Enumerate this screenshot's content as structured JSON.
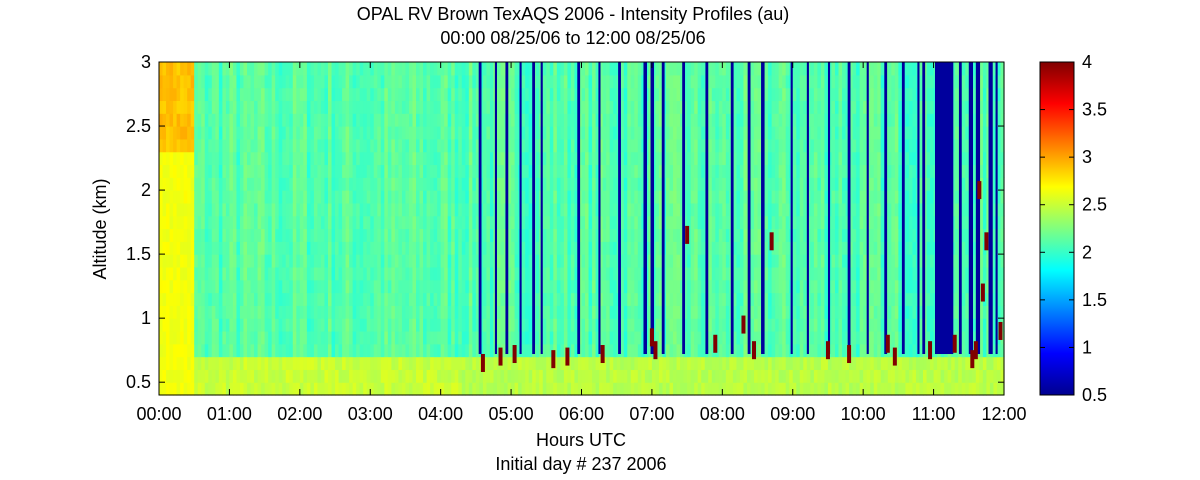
{
  "chart_data": {
    "type": "heatmap",
    "title": "OPAL RV Brown TexAQS 2006 - Intensity Profiles (au)",
    "subtitle": "00:00 08/25/06 to 12:00 08/25/06",
    "xlabel": "Hours UTC",
    "xlabel2": "Initial day # 237  2006",
    "ylabel": "Altitude (km)",
    "xlim": [
      0,
      12
    ],
    "ylim": [
      0.4,
      3
    ],
    "x_ticks": [
      0,
      1,
      2,
      3,
      4,
      5,
      6,
      7,
      8,
      9,
      10,
      11,
      12
    ],
    "x_tick_labels": [
      "00:00",
      "01:00",
      "02:00",
      "03:00",
      "04:00",
      "05:00",
      "06:00",
      "07:00",
      "08:00",
      "09:00",
      "10:00",
      "11:00",
      "12:00"
    ],
    "y_ticks": [
      0.5,
      1,
      1.5,
      2,
      2.5,
      3
    ],
    "y_tick_labels": [
      "0.5",
      "1",
      "1.5",
      "2",
      "2.5",
      "3"
    ],
    "colorbar": {
      "colormap": "jet",
      "clim": [
        0.5,
        4
      ],
      "ticks": [
        0.5,
        1,
        1.5,
        2,
        2.5,
        3,
        3.5,
        4
      ],
      "tick_labels": [
        "0.5",
        "1",
        "1.5",
        "2",
        "2.5",
        "3",
        "3.5",
        "4"
      ]
    },
    "grid": false,
    "description_fields": {
      "background_level": 2.1,
      "near_surface_level": 2.5,
      "early_high_level_window": [
        0.0,
        0.5
      ],
      "early_high_level_value": 2.9,
      "boundary_layer_top_km": 0.72,
      "boundary_layer_peak_value": 4.0
    },
    "low_signal_bands": [
      [
        4.54,
        4.58
      ],
      [
        4.77,
        4.8
      ],
      [
        4.92,
        4.96
      ],
      [
        5.12,
        5.15
      ],
      [
        5.3,
        5.34
      ],
      [
        5.42,
        5.45
      ],
      [
        5.94,
        5.98
      ],
      [
        6.24,
        6.27
      ],
      [
        6.52,
        6.56
      ],
      [
        6.88,
        6.93
      ],
      [
        6.98,
        7.03
      ],
      [
        7.14,
        7.18
      ],
      [
        7.43,
        7.47
      ],
      [
        7.76,
        7.8
      ],
      [
        8.12,
        8.16
      ],
      [
        8.36,
        8.4
      ],
      [
        8.55,
        8.6
      ],
      [
        8.97,
        9.0
      ],
      [
        9.2,
        9.23
      ],
      [
        9.5,
        9.53
      ],
      [
        9.78,
        9.82
      ],
      [
        10.05,
        10.08
      ],
      [
        10.3,
        10.34
      ],
      [
        10.55,
        10.59
      ],
      [
        10.77,
        10.8
      ],
      [
        10.84,
        10.88
      ],
      [
        11.02,
        11.28
      ],
      [
        11.36,
        11.4
      ],
      [
        11.5,
        11.56
      ],
      [
        11.6,
        11.66
      ],
      [
        11.78,
        11.84
      ],
      [
        11.88,
        11.91
      ]
    ],
    "high_signal_spots": [
      [
        4.6,
        0.65
      ],
      [
        4.85,
        0.7
      ],
      [
        5.05,
        0.72
      ],
      [
        5.6,
        0.68
      ],
      [
        5.8,
        0.7
      ],
      [
        6.3,
        0.72
      ],
      [
        7.0,
        0.85
      ],
      [
        7.05,
        0.75
      ],
      [
        7.5,
        1.65
      ],
      [
        7.9,
        0.8
      ],
      [
        8.3,
        0.95
      ],
      [
        8.45,
        0.75
      ],
      [
        8.7,
        1.6
      ],
      [
        9.5,
        0.75
      ],
      [
        9.8,
        0.72
      ],
      [
        10.35,
        0.8
      ],
      [
        10.45,
        0.7
      ],
      [
        10.95,
        0.75
      ],
      [
        11.3,
        0.8
      ],
      [
        11.55,
        0.68
      ],
      [
        11.6,
        0.75
      ],
      [
        11.65,
        2.0
      ],
      [
        11.7,
        1.2
      ],
      [
        11.75,
        1.6
      ],
      [
        11.95,
        0.9
      ]
    ]
  }
}
